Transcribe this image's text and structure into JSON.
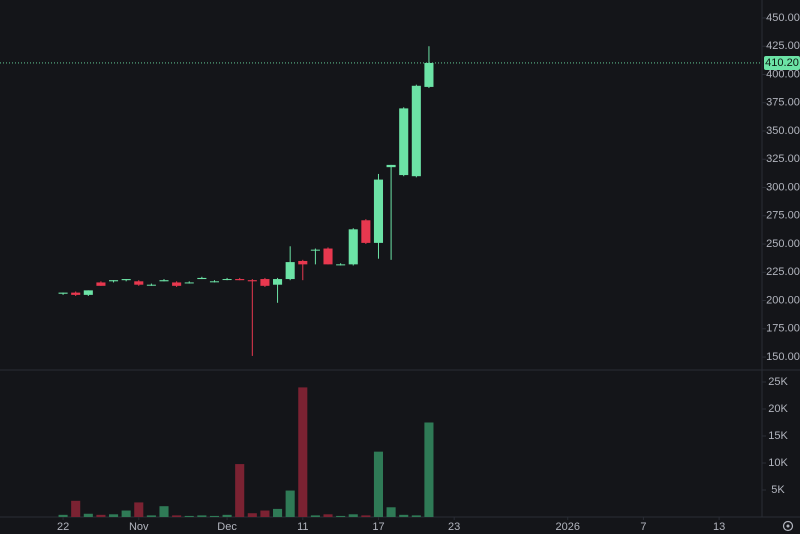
{
  "chart_data": {
    "type": "candlestick",
    "x": [
      0,
      1,
      2,
      3,
      4,
      5,
      6,
      7,
      8,
      9,
      10,
      11,
      12,
      13,
      14,
      15,
      16,
      17,
      18,
      19,
      20,
      21,
      22,
      23,
      24,
      25,
      26,
      27,
      28,
      29
    ],
    "open": [
      206,
      207,
      205,
      216,
      217,
      218,
      217,
      214,
      217,
      216,
      216,
      219,
      217,
      219,
      219,
      218,
      219,
      214,
      219,
      235,
      245,
      246,
      232,
      232,
      271,
      251,
      318,
      311,
      310,
      389
    ],
    "high": [
      207,
      208,
      209,
      217,
      218,
      219,
      218,
      215,
      219,
      217,
      217,
      221,
      218,
      220,
      220,
      219,
      220,
      220,
      248,
      236,
      246,
      247,
      233,
      264,
      272,
      312,
      320,
      371,
      391,
      425
    ],
    "low": [
      205,
      204,
      204,
      213,
      216,
      217,
      213,
      213,
      217,
      212,
      215,
      219,
      216,
      218,
      218,
      151,
      212,
      198,
      218,
      218,
      232,
      232,
      231,
      231,
      250,
      237,
      236,
      310,
      309,
      388
    ],
    "close": [
      207,
      205,
      209,
      213,
      218,
      219,
      214,
      214,
      218,
      213,
      216,
      220,
      217,
      219,
      218,
      217,
      213,
      219,
      234,
      232,
      245,
      232,
      232,
      263,
      251,
      307,
      320,
      370,
      390,
      410.2
    ],
    "volume": [
      400,
      3000,
      600,
      400,
      500,
      1200,
      2700,
      300,
      2000,
      300,
      200,
      300,
      200,
      400,
      9800,
      700,
      1200,
      1500,
      4900,
      24000,
      300,
      500,
      200,
      500,
      300,
      12100,
      1800,
      400,
      300,
      17500
    ],
    "up_color": "#6ce3a6",
    "down_color": "#e8384f",
    "up_volume_color": "#2f7a56",
    "down_volume_color": "#7b2232",
    "xlim": [
      -5,
      55.4
    ],
    "xticks": [
      {
        "value": 0,
        "label": "22"
      },
      {
        "value": 6,
        "label": "Nov"
      },
      {
        "value": 13,
        "label": "Dec"
      },
      {
        "value": 19,
        "label": "11"
      },
      {
        "value": 25,
        "label": "17"
      },
      {
        "value": 31,
        "label": "23"
      },
      {
        "value": 40,
        "label": "2026"
      },
      {
        "value": 46,
        "label": "7"
      },
      {
        "value": 52,
        "label": "13"
      }
    ],
    "ylim": [
      140.3,
      465.9
    ],
    "yticks": [
      {
        "value": 150,
        "label": "150.00"
      },
      {
        "value": 175,
        "label": "175.00"
      },
      {
        "value": 200,
        "label": "200.00"
      },
      {
        "value": 225,
        "label": "225.00"
      },
      {
        "value": 250,
        "label": "250.00"
      },
      {
        "value": 275,
        "label": "275.00"
      },
      {
        "value": 300,
        "label": "300.00"
      },
      {
        "value": 325,
        "label": "325.00"
      },
      {
        "value": 350,
        "label": "350.00"
      },
      {
        "value": 375,
        "label": "375.00"
      },
      {
        "value": 400,
        "label": "400.00"
      },
      {
        "value": 425,
        "label": "425.00"
      },
      {
        "value": 450,
        "label": "450.00"
      }
    ],
    "volume_ylim": [
      0,
      26850
    ],
    "volume_yticks": [
      {
        "value": 5000,
        "label": "5K"
      },
      {
        "value": 10000,
        "label": "10K"
      },
      {
        "value": 15000,
        "label": "15K"
      },
      {
        "value": 20000,
        "label": "20K"
      },
      {
        "value": 25000,
        "label": "25K"
      }
    ],
    "last_price": {
      "value": 410.2,
      "label": "410.20"
    }
  }
}
